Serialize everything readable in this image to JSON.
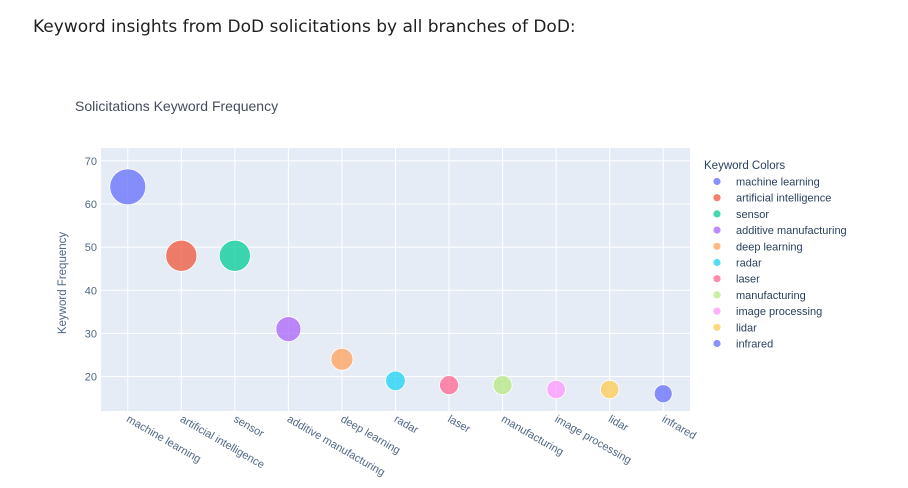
{
  "page": {
    "heading": "Keyword insights from DoD solicitations by all branches of DoD:"
  },
  "chart_data": {
    "type": "scatter",
    "title": "Solicitations Keyword Frequency",
    "xlabel": "",
    "ylabel": "Keyword Frequency",
    "ylim": [
      12,
      73
    ],
    "yticks": [
      20,
      30,
      40,
      50,
      60,
      70
    ],
    "grid": true,
    "marker_size_encodes": "Keyword Frequency",
    "legend": {
      "title": "Keyword Colors",
      "position": "right"
    },
    "plot_bg": "#e5ecf6",
    "categories": [
      "machine learning",
      "artificial intelligence",
      "sensor",
      "additive manufacturing",
      "deep learning",
      "radar",
      "laser",
      "manufacturing",
      "image processing",
      "lidar",
      "infrared"
    ],
    "values": [
      64,
      48,
      48,
      31,
      24,
      19,
      18,
      18,
      17,
      17,
      16
    ],
    "colors": [
      "#636efa",
      "#ef553b",
      "#00cc96",
      "#ab63fa",
      "#ffa15a",
      "#19d3f3",
      "#ff6692",
      "#b6e880",
      "#ff97ff",
      "#fecb52",
      "#636efa"
    ]
  }
}
